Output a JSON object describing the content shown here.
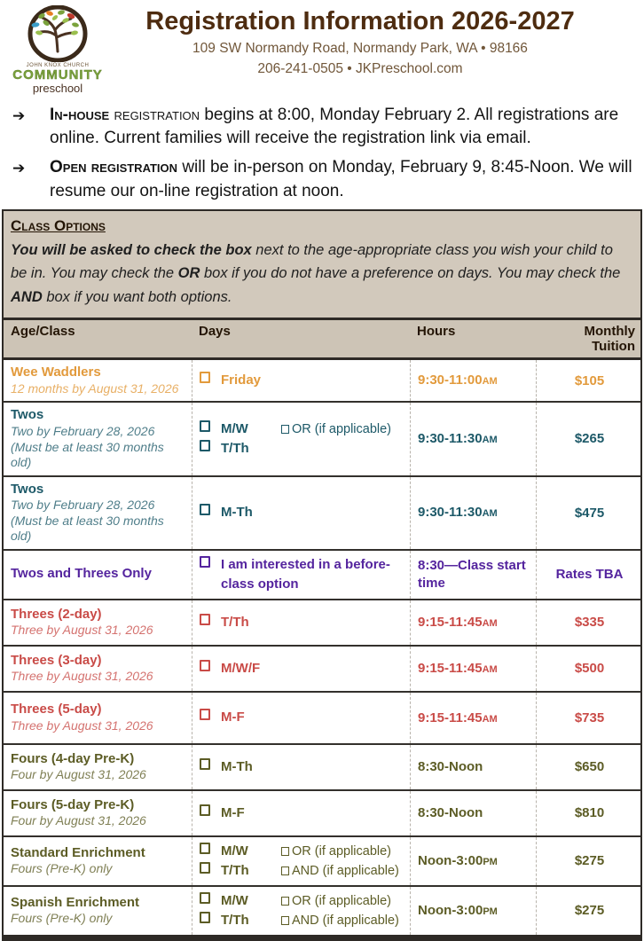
{
  "header": {
    "logo": {
      "org": "JOHN KNOX CHURCH",
      "community": "COMMUNITY",
      "preschool": "preschool"
    },
    "title": "Registration Information 2026-2027",
    "address": "109 SW Normandy Road,  Normandy Park, WA  •  98166",
    "contact": "206-241-0505  •  JKPreschool.com"
  },
  "bullets": [
    {
      "lead_bold": "In-house",
      "lead_rest": " registration",
      "text": " begins at 8:00, Monday February 2.  All registrations are online.  Current families will receive the registration link via email."
    },
    {
      "lead_bold": "Open registration",
      "lead_rest": "",
      "text": " will be in-person on Monday, February 9, 8:45-Noon.  We will resume our on-line registration at noon."
    }
  ],
  "class_options": {
    "title": "Class Options",
    "p_bold": "You will be asked to check the box",
    "p1": " next to the age-appropriate class you wish your child to be in.  You may check the ",
    "or": "OR",
    "p2": " box if you do not have a preference on days.  You may check the ",
    "and": "AND",
    "p3": " box if you want both options."
  },
  "table": {
    "headers": [
      "Age/Class",
      "Days",
      "Hours",
      "Monthly Tuition"
    ],
    "rows": [
      {
        "name": "Wee Waddlers",
        "subtitle": "12 months by August 31, 2026",
        "subtitle2": "",
        "color": "#e29a3c",
        "days": [
          "Friday"
        ],
        "extras": [],
        "hours": "9:30-11:00",
        "hours_suffix": "AM",
        "tuition": "$105"
      },
      {
        "name": "Twos",
        "subtitle": "Two by February 28, 2026",
        "subtitle2": "(Must be at least 30 months old)",
        "color": "#1d5968",
        "days": [
          "M/W",
          "T/Th"
        ],
        "extras": [
          "OR (if applicable)"
        ],
        "hours": "9:30-11:30",
        "hours_suffix": "AM",
        "tuition": "$265"
      },
      {
        "name": "Twos",
        "subtitle": "Two by February 28, 2026",
        "subtitle2": "(Must be at least 30 months old)",
        "color": "#1d5968",
        "days": [
          "M-Th"
        ],
        "extras": [],
        "hours": "9:30-11:30",
        "hours_suffix": "AM",
        "tuition": "$475"
      },
      {
        "name": "Twos and Threes Only",
        "subtitle": "",
        "subtitle2": "",
        "color": "#54249e",
        "days": [
          "I am interested in a before-class option"
        ],
        "extras": [],
        "hours": "8:30—Class start time",
        "hours_suffix": "",
        "tuition": "Rates TBA"
      },
      {
        "name": "Threes (2-day)",
        "subtitle": "Three by August 31, 2026",
        "subtitle2": "",
        "color": "#c94b47",
        "days": [
          "T/Th"
        ],
        "extras": [],
        "hours": "9:15-11:45",
        "hours_suffix": "AM",
        "tuition": "$335"
      },
      {
        "name": "Threes (3-day)",
        "subtitle": "Three by August 31, 2026",
        "subtitle2": "",
        "color": "#c94b47",
        "days": [
          "M/W/F"
        ],
        "extras": [],
        "hours": "9:15-11:45",
        "hours_suffix": "AM",
        "tuition": "$500"
      },
      {
        "name": "Threes (5-day)",
        "subtitle": "Three by August 31, 2026",
        "subtitle2": "",
        "color": "#c94b47",
        "days": [
          "M-F"
        ],
        "extras": [],
        "hours": "9:15-11:45",
        "hours_suffix": "AM",
        "tuition": "$735"
      },
      {
        "name": "Fours (4-day Pre-K)",
        "subtitle": "Four by August 31, 2026",
        "subtitle2": "",
        "color": "#5c5c25",
        "days": [
          "M-Th"
        ],
        "extras": [],
        "hours": "8:30-Noon",
        "hours_suffix": "",
        "tuition": "$650"
      },
      {
        "name": "Fours (5-day Pre-K)",
        "subtitle": "Four by August 31, 2026",
        "subtitle2": "",
        "color": "#5c5c25",
        "days": [
          "M-F"
        ],
        "extras": [],
        "hours": "8:30-Noon",
        "hours_suffix": "",
        "tuition": "$810"
      },
      {
        "name": "Standard Enrichment",
        "subtitle": "Fours (Pre-K) only",
        "subtitle2": "",
        "color": "#5c5c25",
        "days": [
          "M/W",
          "T/Th"
        ],
        "extras": [
          "OR (if applicable)",
          "AND (if applicable)"
        ],
        "hours": "Noon-3:00",
        "hours_suffix": "PM",
        "tuition": "$275"
      },
      {
        "name": "Spanish Enrichment",
        "subtitle": "Fours (Pre-K) only",
        "subtitle2": "",
        "color": "#5c5c25",
        "days": [
          "M/W",
          "T/Th"
        ],
        "extras": [
          "OR (if applicable)",
          "AND (if applicable)"
        ],
        "hours": "Noon-3:00",
        "hours_suffix": "PM",
        "tuition": "$275"
      }
    ]
  },
  "colors": {
    "title_brown": "#4e2c10",
    "address_brown": "#71573a",
    "panel_tan": "#d2c9bc",
    "border_dark": "#2e2a26",
    "orange": "#e29a3c",
    "teal": "#1d5968",
    "purple": "#54249e",
    "red": "#c94b47",
    "olive": "#5c5c25"
  }
}
